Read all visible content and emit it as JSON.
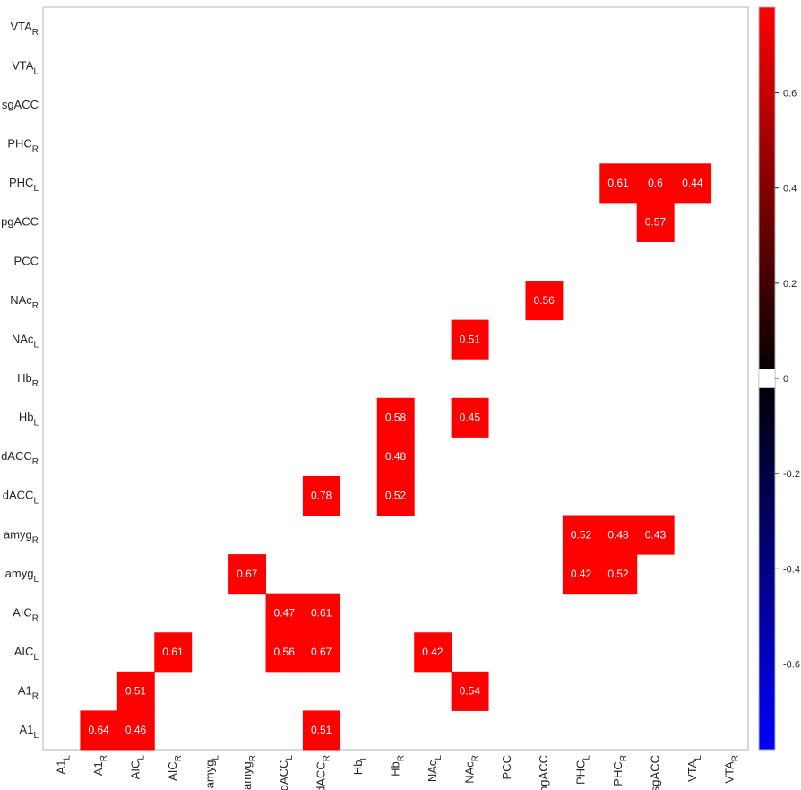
{
  "chart_data": {
    "type": "heatmap",
    "x_labels": [
      {
        "base": "A1",
        "sub": "L"
      },
      {
        "base": "A1",
        "sub": "R"
      },
      {
        "base": "AIC",
        "sub": "L"
      },
      {
        "base": "AIC",
        "sub": "R"
      },
      {
        "base": "amyg",
        "sub": "L"
      },
      {
        "base": "amyg",
        "sub": "R"
      },
      {
        "base": "dACC",
        "sub": "L"
      },
      {
        "base": "dACC",
        "sub": "R"
      },
      {
        "base": "Hb",
        "sub": "L"
      },
      {
        "base": "Hb",
        "sub": "R"
      },
      {
        "base": "NAc",
        "sub": "L"
      },
      {
        "base": "NAc",
        "sub": "R"
      },
      {
        "base": "PCC",
        "sub": ""
      },
      {
        "base": "pgACC",
        "sub": ""
      },
      {
        "base": "PHC",
        "sub": "L"
      },
      {
        "base": "PHC",
        "sub": "R"
      },
      {
        "base": "sgACC",
        "sub": ""
      },
      {
        "base": "VTA",
        "sub": "L"
      },
      {
        "base": "VTA",
        "sub": "R"
      }
    ],
    "y_labels": [
      {
        "base": "VTA",
        "sub": "R"
      },
      {
        "base": "VTA",
        "sub": "L"
      },
      {
        "base": "sgACC",
        "sub": ""
      },
      {
        "base": "PHC",
        "sub": "R"
      },
      {
        "base": "PHC",
        "sub": "L"
      },
      {
        "base": "pgACC",
        "sub": ""
      },
      {
        "base": "PCC",
        "sub": ""
      },
      {
        "base": "NAc",
        "sub": "R"
      },
      {
        "base": "NAc",
        "sub": "L"
      },
      {
        "base": "Hb",
        "sub": "R"
      },
      {
        "base": "Hb",
        "sub": "L"
      },
      {
        "base": "dACC",
        "sub": "R"
      },
      {
        "base": "dACC",
        "sub": "L"
      },
      {
        "base": "amyg",
        "sub": "R"
      },
      {
        "base": "amyg",
        "sub": "L"
      },
      {
        "base": "AIC",
        "sub": "R"
      },
      {
        "base": "AIC",
        "sub": "L"
      },
      {
        "base": "A1",
        "sub": "R"
      },
      {
        "base": "A1",
        "sub": "L"
      }
    ],
    "cells": [
      {
        "row": "PHC_L",
        "col": "PHC_R",
        "value": 0.61
      },
      {
        "row": "PHC_L",
        "col": "sgACC",
        "value": 0.6
      },
      {
        "row": "PHC_L",
        "col": "VTA_L",
        "value": 0.44
      },
      {
        "row": "pgACC",
        "col": "sgACC",
        "value": 0.57
      },
      {
        "row": "NAc_R",
        "col": "pgACC",
        "value": 0.56
      },
      {
        "row": "NAc_L",
        "col": "NAc_R",
        "value": 0.51
      },
      {
        "row": "Hb_L",
        "col": "Hb_R",
        "value": 0.58
      },
      {
        "row": "Hb_L",
        "col": "NAc_R",
        "value": 0.45
      },
      {
        "row": "dACC_R",
        "col": "Hb_R",
        "value": 0.48
      },
      {
        "row": "dACC_L",
        "col": "dACC_R",
        "value": 0.78
      },
      {
        "row": "dACC_L",
        "col": "Hb_R",
        "value": 0.52
      },
      {
        "row": "amyg_R",
        "col": "PHC_L",
        "value": 0.52
      },
      {
        "row": "amyg_R",
        "col": "PHC_R",
        "value": 0.48
      },
      {
        "row": "amyg_R",
        "col": "sgACC",
        "value": 0.43
      },
      {
        "row": "amyg_L",
        "col": "amyg_R",
        "value": 0.67
      },
      {
        "row": "amyg_L",
        "col": "PHC_L",
        "value": 0.42
      },
      {
        "row": "amyg_L",
        "col": "PHC_R",
        "value": 0.52
      },
      {
        "row": "AIC_R",
        "col": "dACC_L",
        "value": 0.47
      },
      {
        "row": "AIC_R",
        "col": "dACC_R",
        "value": 0.61
      },
      {
        "row": "AIC_L",
        "col": "AIC_R",
        "value": 0.61
      },
      {
        "row": "AIC_L",
        "col": "dACC_L",
        "value": 0.56
      },
      {
        "row": "AIC_L",
        "col": "dACC_R",
        "value": 0.67
      },
      {
        "row": "AIC_L",
        "col": "NAc_L",
        "value": 0.42
      },
      {
        "row": "A1_R",
        "col": "AIC_L",
        "value": 0.51
      },
      {
        "row": "A1_R",
        "col": "NAc_R",
        "value": 0.54
      },
      {
        "row": "A1_L",
        "col": "A1_R",
        "value": 0.64
      },
      {
        "row": "A1_L",
        "col": "AIC_L",
        "value": 0.46
      },
      {
        "row": "A1_L",
        "col": "dACC_R",
        "value": 0.51
      }
    ],
    "colorbar": {
      "range": [
        -0.78,
        0.78
      ],
      "ticks": [
        -0.6,
        -0.4,
        -0.2,
        0,
        0.2,
        0.4,
        0.6
      ],
      "tick_labels": [
        "-0.6",
        "-0.4",
        "-0.2",
        "0",
        "0.2",
        "0.4",
        "0.6"
      ],
      "colors": {
        "negative_max": "#0000ff",
        "center": "#000000",
        "positive_max": "#ff0000",
        "masked": "#ffffff"
      },
      "masked_band": [
        -0.02,
        0.02
      ]
    },
    "cell_color": "#ff0000",
    "grid": false
  }
}
